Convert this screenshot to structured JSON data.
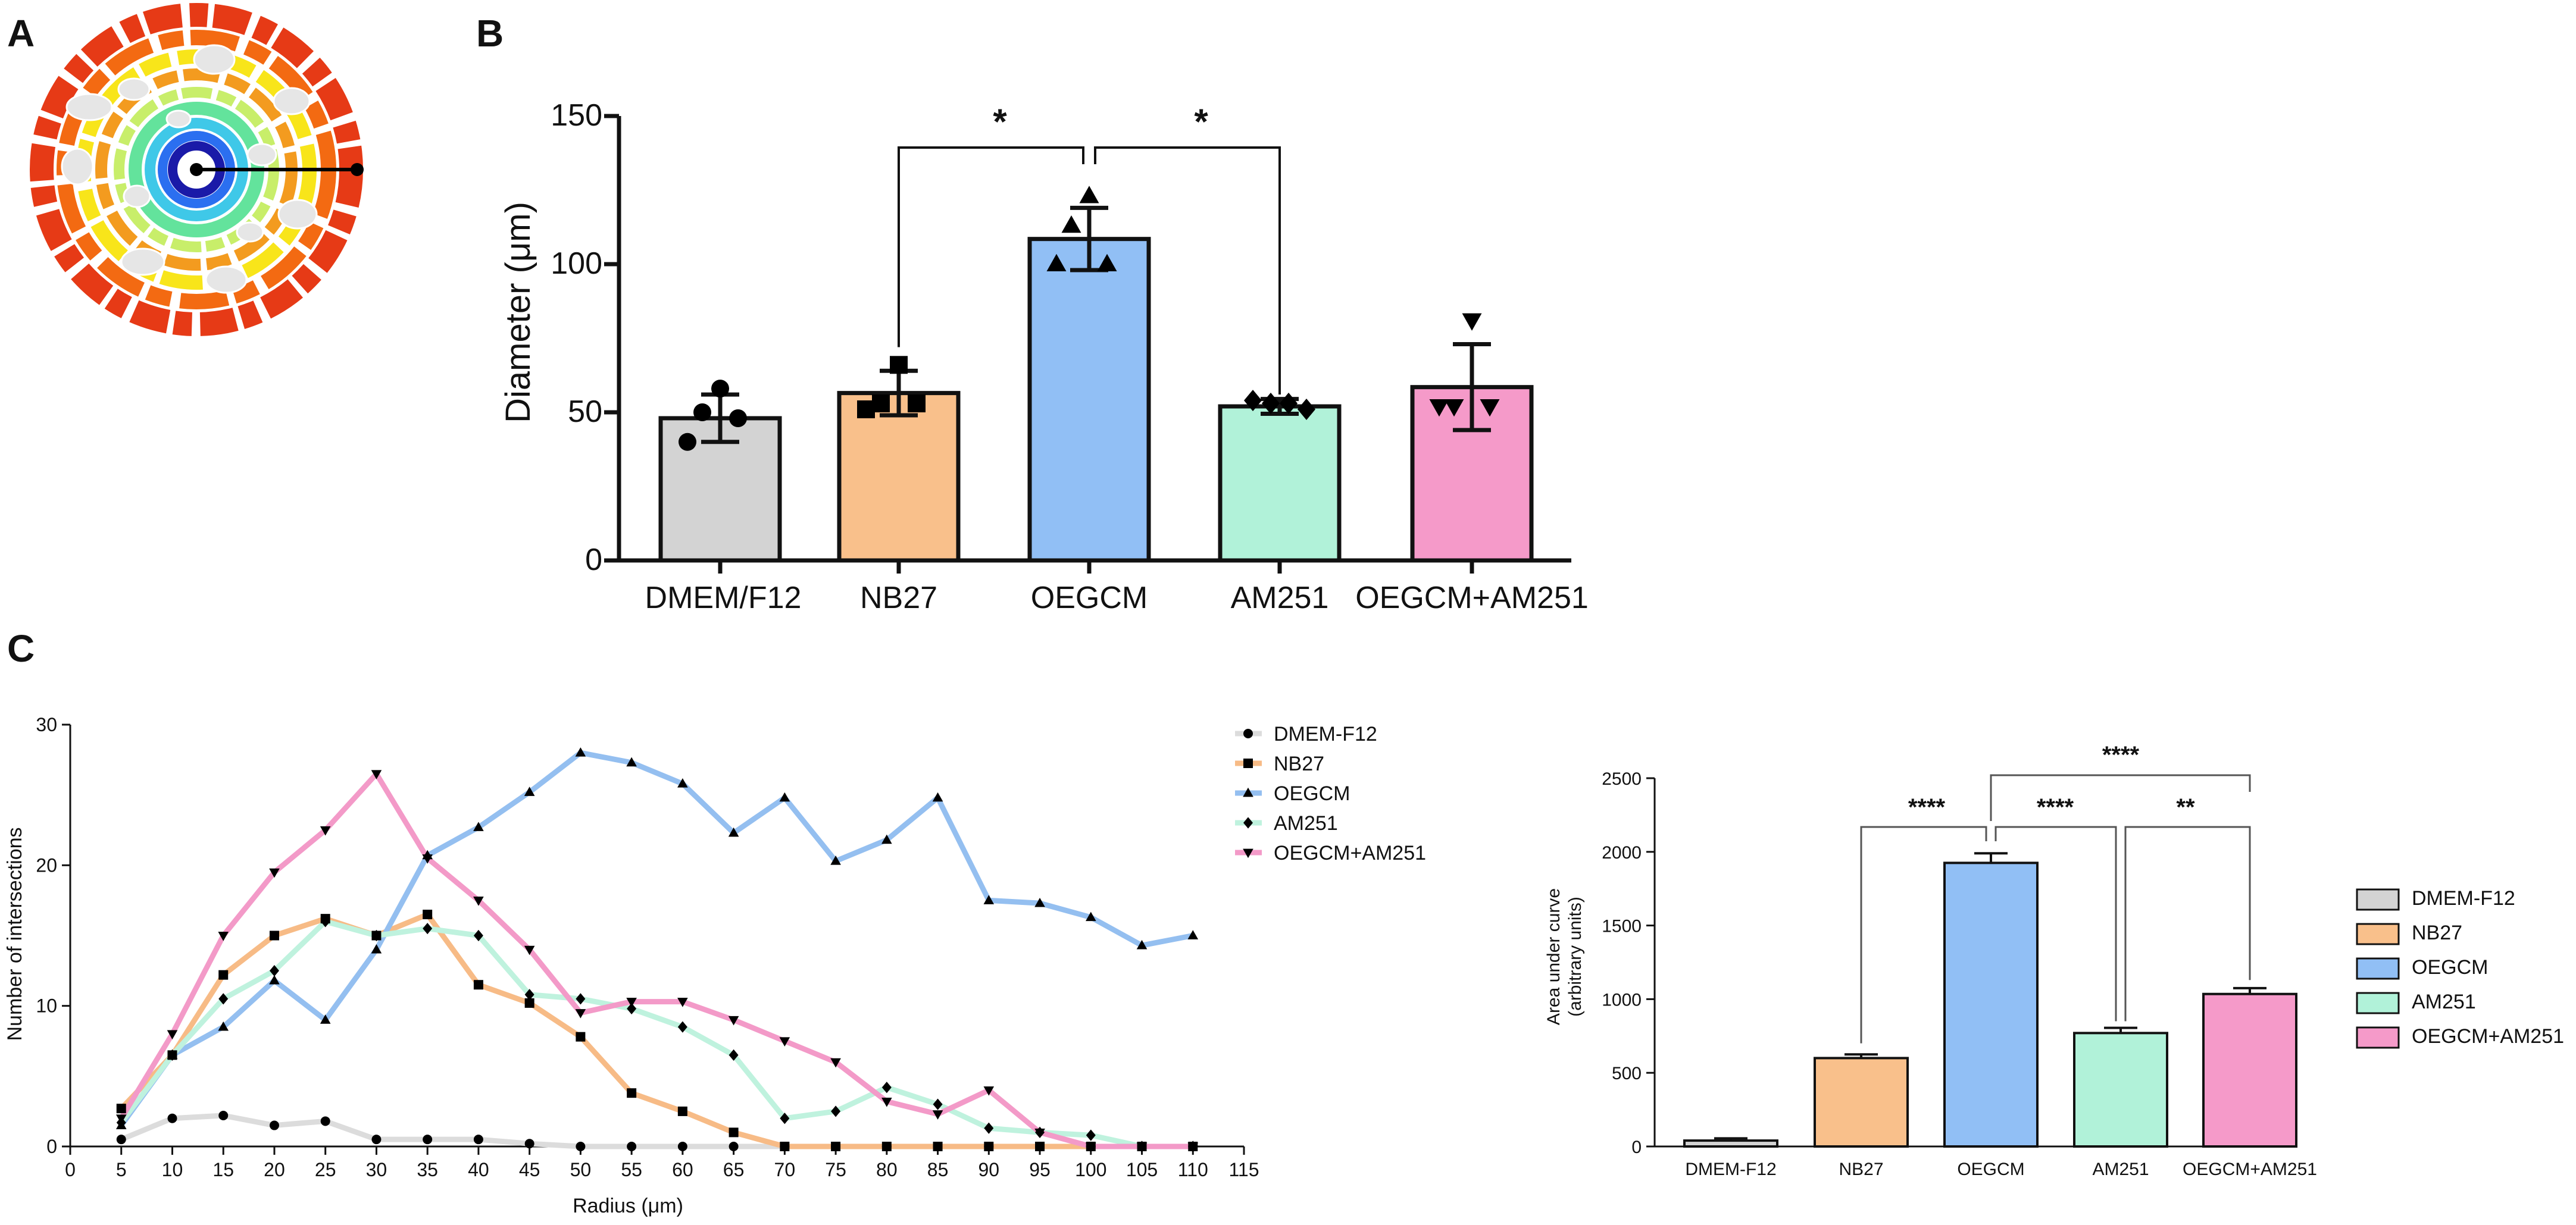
{
  "panels": {
    "a_label": "A",
    "b_label": "B",
    "c_label": "C"
  },
  "colors": {
    "DMEM": "#d3d3d3",
    "NB27": "#f9c08b",
    "OEGCM": "#91bff5",
    "AM251": "#b1f2d9",
    "OEGCMAM251": "#f59ac9",
    "axis": "#111111",
    "line_DMEM": "#dcdcdc",
    "line_NB27": "#f7bb86",
    "line_OEGCM": "#94bff0",
    "line_AM251": "#bff2de",
    "line_OEGCMAM251": "#f39ac8"
  },
  "chart_data": [
    {
      "id": "panel-b",
      "type": "bar",
      "title": "",
      "xlabel": "",
      "ylabel": "Diameter (μm)",
      "ylim": [
        0,
        150
      ],
      "yticks": [
        "0",
        "50",
        "100",
        "150"
      ],
      "categories": [
        "DMEM/F12",
        "NB27",
        "OEGCM",
        "AM251",
        "OEGCM+AM251"
      ],
      "values": [
        48,
        56.5,
        108.5,
        52,
        58.5
      ],
      "errors": [
        8,
        7.5,
        10.5,
        2.5,
        14.5
      ],
      "points": [
        [
          58,
          50,
          48,
          40
        ],
        [
          66,
          53,
          53,
          51
        ],
        [
          123,
          113,
          100,
          100
        ],
        [
          54,
          53,
          53,
          51
        ],
        [
          81,
          52,
          52,
          52
        ]
      ],
      "markers": [
        "circle",
        "square",
        "triangle-up",
        "diamond",
        "triangle-down"
      ],
      "significance": [
        {
          "from": "NB27",
          "to": "OEGCM",
          "label": "*"
        },
        {
          "from": "OEGCM",
          "to": "AM251",
          "label": "*"
        }
      ]
    },
    {
      "id": "panel-c-lines",
      "type": "line",
      "title": "",
      "xlabel": "Radius (μm)",
      "ylabel": "Number of intersections",
      "xlim": [
        0,
        115
      ],
      "ylim": [
        0,
        30
      ],
      "xticks": [
        "0",
        "5",
        "10",
        "15",
        "20",
        "25",
        "30",
        "35",
        "40",
        "45",
        "50",
        "55",
        "60",
        "65",
        "70",
        "75",
        "80",
        "85",
        "90",
        "95",
        "100",
        "105",
        "110",
        "115"
      ],
      "yticks": [
        "0",
        "10",
        "20",
        "30"
      ],
      "x": [
        5,
        10,
        15,
        20,
        25,
        30,
        35,
        40,
        45,
        50,
        55,
        60,
        65,
        70,
        75,
        80,
        85,
        90,
        95,
        100,
        105,
        110
      ],
      "series": [
        {
          "name": "DMEM-F12",
          "marker": "circle",
          "values": [
            0.5,
            2,
            2.2,
            1.5,
            1.8,
            0.5,
            0.5,
            0.5,
            0.2,
            0,
            0,
            0,
            0,
            0,
            0,
            0,
            0,
            0,
            0,
            0,
            0,
            0
          ]
        },
        {
          "name": "NB27",
          "marker": "square",
          "values": [
            2.7,
            6.5,
            12.2,
            15,
            16.2,
            15,
            16.5,
            11.5,
            10.2,
            7.8,
            3.8,
            2.5,
            1,
            0,
            0,
            0,
            0,
            0,
            0,
            0,
            0,
            0
          ]
        },
        {
          "name": "OEGCM",
          "marker": "triangle-up",
          "values": [
            1.5,
            6.5,
            8.5,
            11.8,
            9,
            14,
            20.7,
            22.7,
            25.2,
            28,
            27.3,
            25.8,
            22.3,
            24.8,
            20.3,
            21.8,
            24.8,
            17.5,
            17.3,
            16.3,
            14.3,
            15
          ]
        },
        {
          "name": "AM251",
          "marker": "diamond",
          "values": [
            1.7,
            6.5,
            10.5,
            12.5,
            16,
            15,
            15.5,
            15,
            10.8,
            10.5,
            9.8,
            8.5,
            6.5,
            2,
            2.5,
            4.2,
            3,
            1.3,
            1,
            0.8,
            0,
            0
          ]
        },
        {
          "name": "OEGCM+AM251",
          "marker": "triangle-down",
          "values": [
            2,
            8,
            15,
            19.5,
            22.5,
            26.5,
            20.5,
            17.5,
            14,
            9.5,
            10.3,
            10.3,
            9,
            7.5,
            6,
            3.2,
            2.3,
            4,
            1,
            0,
            0,
            0
          ]
        }
      ]
    },
    {
      "id": "panel-c-auc",
      "type": "bar",
      "title": "",
      "xlabel": "",
      "ylabel": "Area under curve",
      "ylabel2": "(arbitrary units)",
      "ylim": [
        0,
        2500
      ],
      "yticks": [
        "0",
        "500",
        "1000",
        "1500",
        "2000",
        "2500"
      ],
      "categories": [
        "DMEM-F12",
        "NB27",
        "OEGCM",
        "AM251",
        "OEGCM+AM251"
      ],
      "values": [
        40,
        600,
        1925,
        770,
        1035
      ],
      "errors": [
        15,
        25,
        65,
        35,
        40
      ],
      "significance": [
        {
          "from": "NB27",
          "to": "OEGCM",
          "label": "****"
        },
        {
          "from": "OEGCM",
          "to": "AM251",
          "label": "****"
        },
        {
          "from": "AM251",
          "to": "OEGCM+AM251",
          "label": "**"
        },
        {
          "from": "OEGCM",
          "to": "OEGCM+AM251",
          "label": "****"
        }
      ],
      "legend": [
        "DMEM-F12",
        "NB27",
        "OEGCM",
        "AM251",
        "OEGCM+AM251"
      ]
    }
  ]
}
